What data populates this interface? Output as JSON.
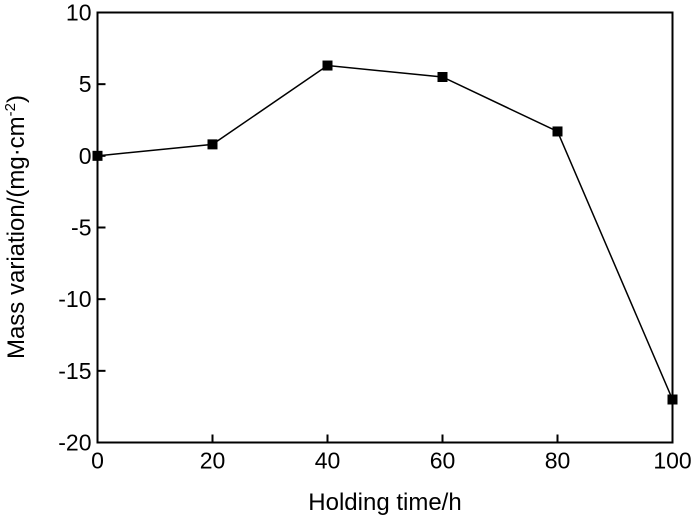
{
  "chart_data": {
    "type": "line",
    "title": "",
    "xlabel": "Holding time/h",
    "ylabel_parts": {
      "main": "Mass variation/(mg·cm",
      "superscript": "-2",
      "close": ")"
    },
    "xlim": [
      0,
      100
    ],
    "ylim": [
      -20,
      10
    ],
    "x_ticks": [
      0,
      20,
      40,
      60,
      80,
      100
    ],
    "y_ticks": [
      10,
      5,
      0,
      -5,
      -10,
      -15,
      -20
    ],
    "grid": false,
    "legend": "none",
    "series": [
      {
        "x": [
          0,
          20,
          40,
          60,
          80,
          100
        ],
        "y": [
          0.0,
          0.8,
          6.3,
          5.5,
          1.7,
          -17.0
        ],
        "marker": "square",
        "color": "#000000"
      }
    ]
  }
}
